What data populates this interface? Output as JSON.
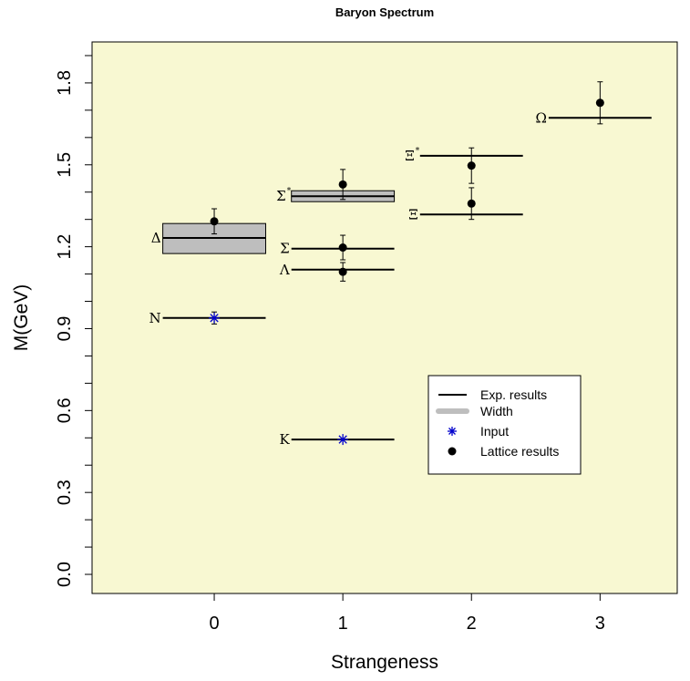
{
  "chart_data": {
    "type": "scatter",
    "title": "Baryon Spectrum",
    "xlabel": "Strangeness",
    "ylabel": "M(GeV)",
    "xlim": [
      -0.95,
      3.6
    ],
    "ylim": [
      -0.07,
      1.95
    ],
    "x_ticks": [
      "0",
      "1",
      "2",
      "3"
    ],
    "y_ticks": [
      "0.0",
      "0.3",
      "0.6",
      "0.9",
      "1.2",
      "1.5",
      "1.8"
    ],
    "colors": {
      "plot_background": "#f8f8d2",
      "exp_line": "#000000",
      "width_band": "#bebebe",
      "input": "#0000cc",
      "lattice": "#000000"
    },
    "experimental": [
      {
        "label": "N",
        "sup": "",
        "strangeness": 0,
        "mass": 0.939
      },
      {
        "label": "Δ",
        "sup": "",
        "strangeness": 0,
        "mass": 1.232,
        "width_low": 1.175,
        "width_high": 1.285
      },
      {
        "label": "K",
        "sup": "",
        "strangeness": 1,
        "mass": 0.494
      },
      {
        "label": "Λ",
        "sup": "",
        "strangeness": 1,
        "mass": 1.116
      },
      {
        "label": "Σ",
        "sup": "",
        "strangeness": 1,
        "mass": 1.193
      },
      {
        "label": "Σ",
        "sup": "*",
        "strangeness": 1,
        "mass": 1.385,
        "width_low": 1.365,
        "width_high": 1.405
      },
      {
        "label": "Ξ",
        "sup": "",
        "strangeness": 2,
        "mass": 1.318
      },
      {
        "label": "Ξ",
        "sup": "*",
        "strangeness": 2,
        "mass": 1.533
      },
      {
        "label": "Ω",
        "sup": "",
        "strangeness": 3,
        "mass": 1.672
      }
    ],
    "input_points": [
      {
        "strangeness": 0,
        "mass": 0.939,
        "err": 0.022
      },
      {
        "strangeness": 1,
        "mass": 0.494,
        "err": 0.0
      }
    ],
    "lattice_points": [
      {
        "strangeness": 0,
        "mass": 1.293,
        "err": 0.046
      },
      {
        "strangeness": 1,
        "mass": 1.108,
        "err": 0.034
      },
      {
        "strangeness": 1,
        "mass": 1.197,
        "err": 0.045
      },
      {
        "strangeness": 1,
        "mass": 1.428,
        "err": 0.055
      },
      {
        "strangeness": 2,
        "mass": 1.358,
        "err": 0.058
      },
      {
        "strangeness": 2,
        "mass": 1.497,
        "err": 0.065
      },
      {
        "strangeness": 3,
        "mass": 1.727,
        "err": 0.077
      }
    ],
    "legend": {
      "position": "center-right",
      "entries": [
        {
          "label": "Exp. results",
          "symbol": "line"
        },
        {
          "label": "Width",
          "symbol": "band"
        },
        {
          "label": "Input",
          "symbol": "asterisk"
        },
        {
          "label": "Lattice results",
          "symbol": "dot"
        }
      ]
    }
  }
}
